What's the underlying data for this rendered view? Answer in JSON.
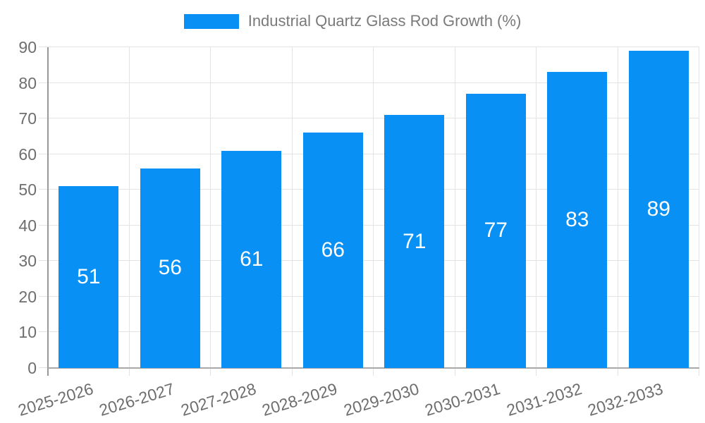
{
  "chart_data": {
    "type": "bar",
    "title": "",
    "legend": "Industrial Quartz Glass Rod Growth (%)",
    "legend_position": "top-center",
    "categories": [
      "2025-2026",
      "2026-2027",
      "2027-2028",
      "2028-2029",
      "2029-2030",
      "2030-2031",
      "2031-2032",
      "2032-2033"
    ],
    "values": [
      51,
      56,
      61,
      66,
      71,
      77,
      83,
      89
    ],
    "xlabel": "",
    "ylabel": "",
    "ylim": [
      0,
      90
    ],
    "yticks": [
      0,
      10,
      20,
      30,
      40,
      50,
      60,
      70,
      80,
      90
    ],
    "grid": true,
    "bar_label_position": "inside-center",
    "x_label_rotation_deg": -17,
    "colors": {
      "bar": "#0990f5",
      "bar_label": "#ffffff",
      "axis_text": "#6e6e6e",
      "legend_text": "#7a7a7a",
      "gridline": "#e3e3e3",
      "y_axis_line": "#999999",
      "x_axis_line": "#a9a9a9",
      "background": "#ffffff"
    }
  }
}
